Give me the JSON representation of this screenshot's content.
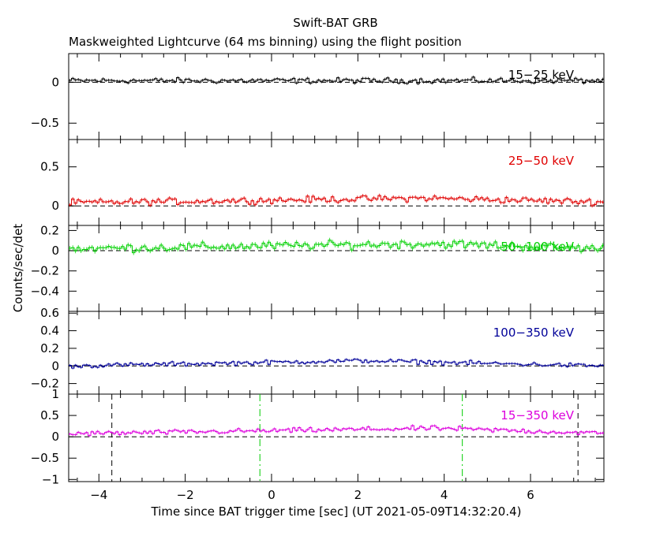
{
  "header": {
    "title": "Swift-BAT GRB",
    "subtitle": "Maskweighted Lightcurve (64 ms binning) using the flight position"
  },
  "axes": {
    "xlabel": "Time since BAT trigger time [sec] (UT 2021-05-09T14:32:20.4)",
    "ylabel": "Counts/sec/det"
  },
  "chart_data": [
    {
      "type": "line",
      "label": "15−25 keV",
      "color": "#000000",
      "xlim": [
        -4.7,
        7.7
      ],
      "ylim": [
        -0.7,
        0.35
      ],
      "yticks": [
        {
          "v": 0,
          "t": "0"
        },
        {
          "v": -0.5,
          "t": "−0.5"
        }
      ],
      "baseline": 0.02,
      "noise": 0.02,
      "series": [
        {
          "x": [
            -4.7,
            7.7
          ],
          "values": [
            0.02,
            0.02
          ]
        }
      ]
    },
    {
      "type": "line",
      "label": "25−50 keV",
      "color": "#e00000",
      "xlim": [
        -4.7,
        7.7
      ],
      "ylim": [
        -0.25,
        0.85
      ],
      "yticks": [
        {
          "v": 0.5,
          "t": "0.5"
        },
        {
          "v": 0,
          "t": "0"
        }
      ],
      "baseline": 0.04,
      "noise": 0.025,
      "series": [
        {
          "x": [
            -4.7,
            3.6,
            7.7
          ],
          "values": [
            0.04,
            0.1,
            0.05
          ]
        }
      ]
    },
    {
      "type": "line",
      "label": "50−100 keV",
      "color": "#00d000",
      "xlim": [
        -4.7,
        7.7
      ],
      "ylim": [
        -0.6,
        0.25
      ],
      "yticks": [
        {
          "v": 0.2,
          "t": "0.2"
        },
        {
          "v": 0,
          "t": "0"
        },
        {
          "v": -0.2,
          "t": "−0.2"
        },
        {
          "v": -0.4,
          "t": "−0.4"
        }
      ],
      "baseline": 0.02,
      "noise": 0.025,
      "series": [
        {
          "x": [
            -4.7,
            3.8,
            7.7
          ],
          "values": [
            0.02,
            0.07,
            0.02
          ]
        }
      ]
    },
    {
      "type": "line",
      "label": "100−350 keV",
      "color": "#000099",
      "xlim": [
        -4.7,
        7.7
      ],
      "ylim": [
        -0.32,
        0.62
      ],
      "yticks": [
        {
          "v": 0.6,
          "t": "0.6"
        },
        {
          "v": 0.4,
          "t": "0.4"
        },
        {
          "v": 0.2,
          "t": "0.2"
        },
        {
          "v": 0,
          "t": "0"
        },
        {
          "v": -0.2,
          "t": "−0.2"
        }
      ],
      "baseline": 0.0,
      "noise": 0.015,
      "series": [
        {
          "x": [
            -4.7,
            2.15,
            7.7
          ],
          "values": [
            0.0,
            0.06,
            0.0
          ]
        }
      ]
    },
    {
      "type": "line",
      "label": "15−350 keV",
      "color": "#dd00dd",
      "xlim": [
        -4.7,
        7.7
      ],
      "ylim": [
        -1.05,
        1.0
      ],
      "yticks": [
        {
          "v": 1,
          "t": "1"
        },
        {
          "v": 0.5,
          "t": "0.5"
        },
        {
          "v": 0,
          "t": "0"
        },
        {
          "v": -0.5,
          "t": "−0.5"
        },
        {
          "v": -1,
          "t": "−1"
        }
      ],
      "baseline": 0.07,
      "noise": 0.035,
      "series": [
        {
          "x": [
            -4.7,
            3.8,
            7.7
          ],
          "values": [
            0.07,
            0.2,
            0.08
          ]
        }
      ],
      "vlines": [
        {
          "x": -3.7,
          "color": "#000000",
          "style": "dash"
        },
        {
          "x": -0.27,
          "color": "#00cc00",
          "style": "dashdot"
        },
        {
          "x": 4.42,
          "color": "#00cc00",
          "style": "dashdot"
        },
        {
          "x": 7.1,
          "color": "#000000",
          "style": "dash"
        }
      ]
    }
  ],
  "xticks": [
    {
      "v": -4,
      "t": "−4"
    },
    {
      "v": -2,
      "t": "−2"
    },
    {
      "v": 0,
      "t": "0"
    },
    {
      "v": 2,
      "t": "2"
    },
    {
      "v": 4,
      "t": "4"
    },
    {
      "v": 6,
      "t": "6"
    }
  ]
}
